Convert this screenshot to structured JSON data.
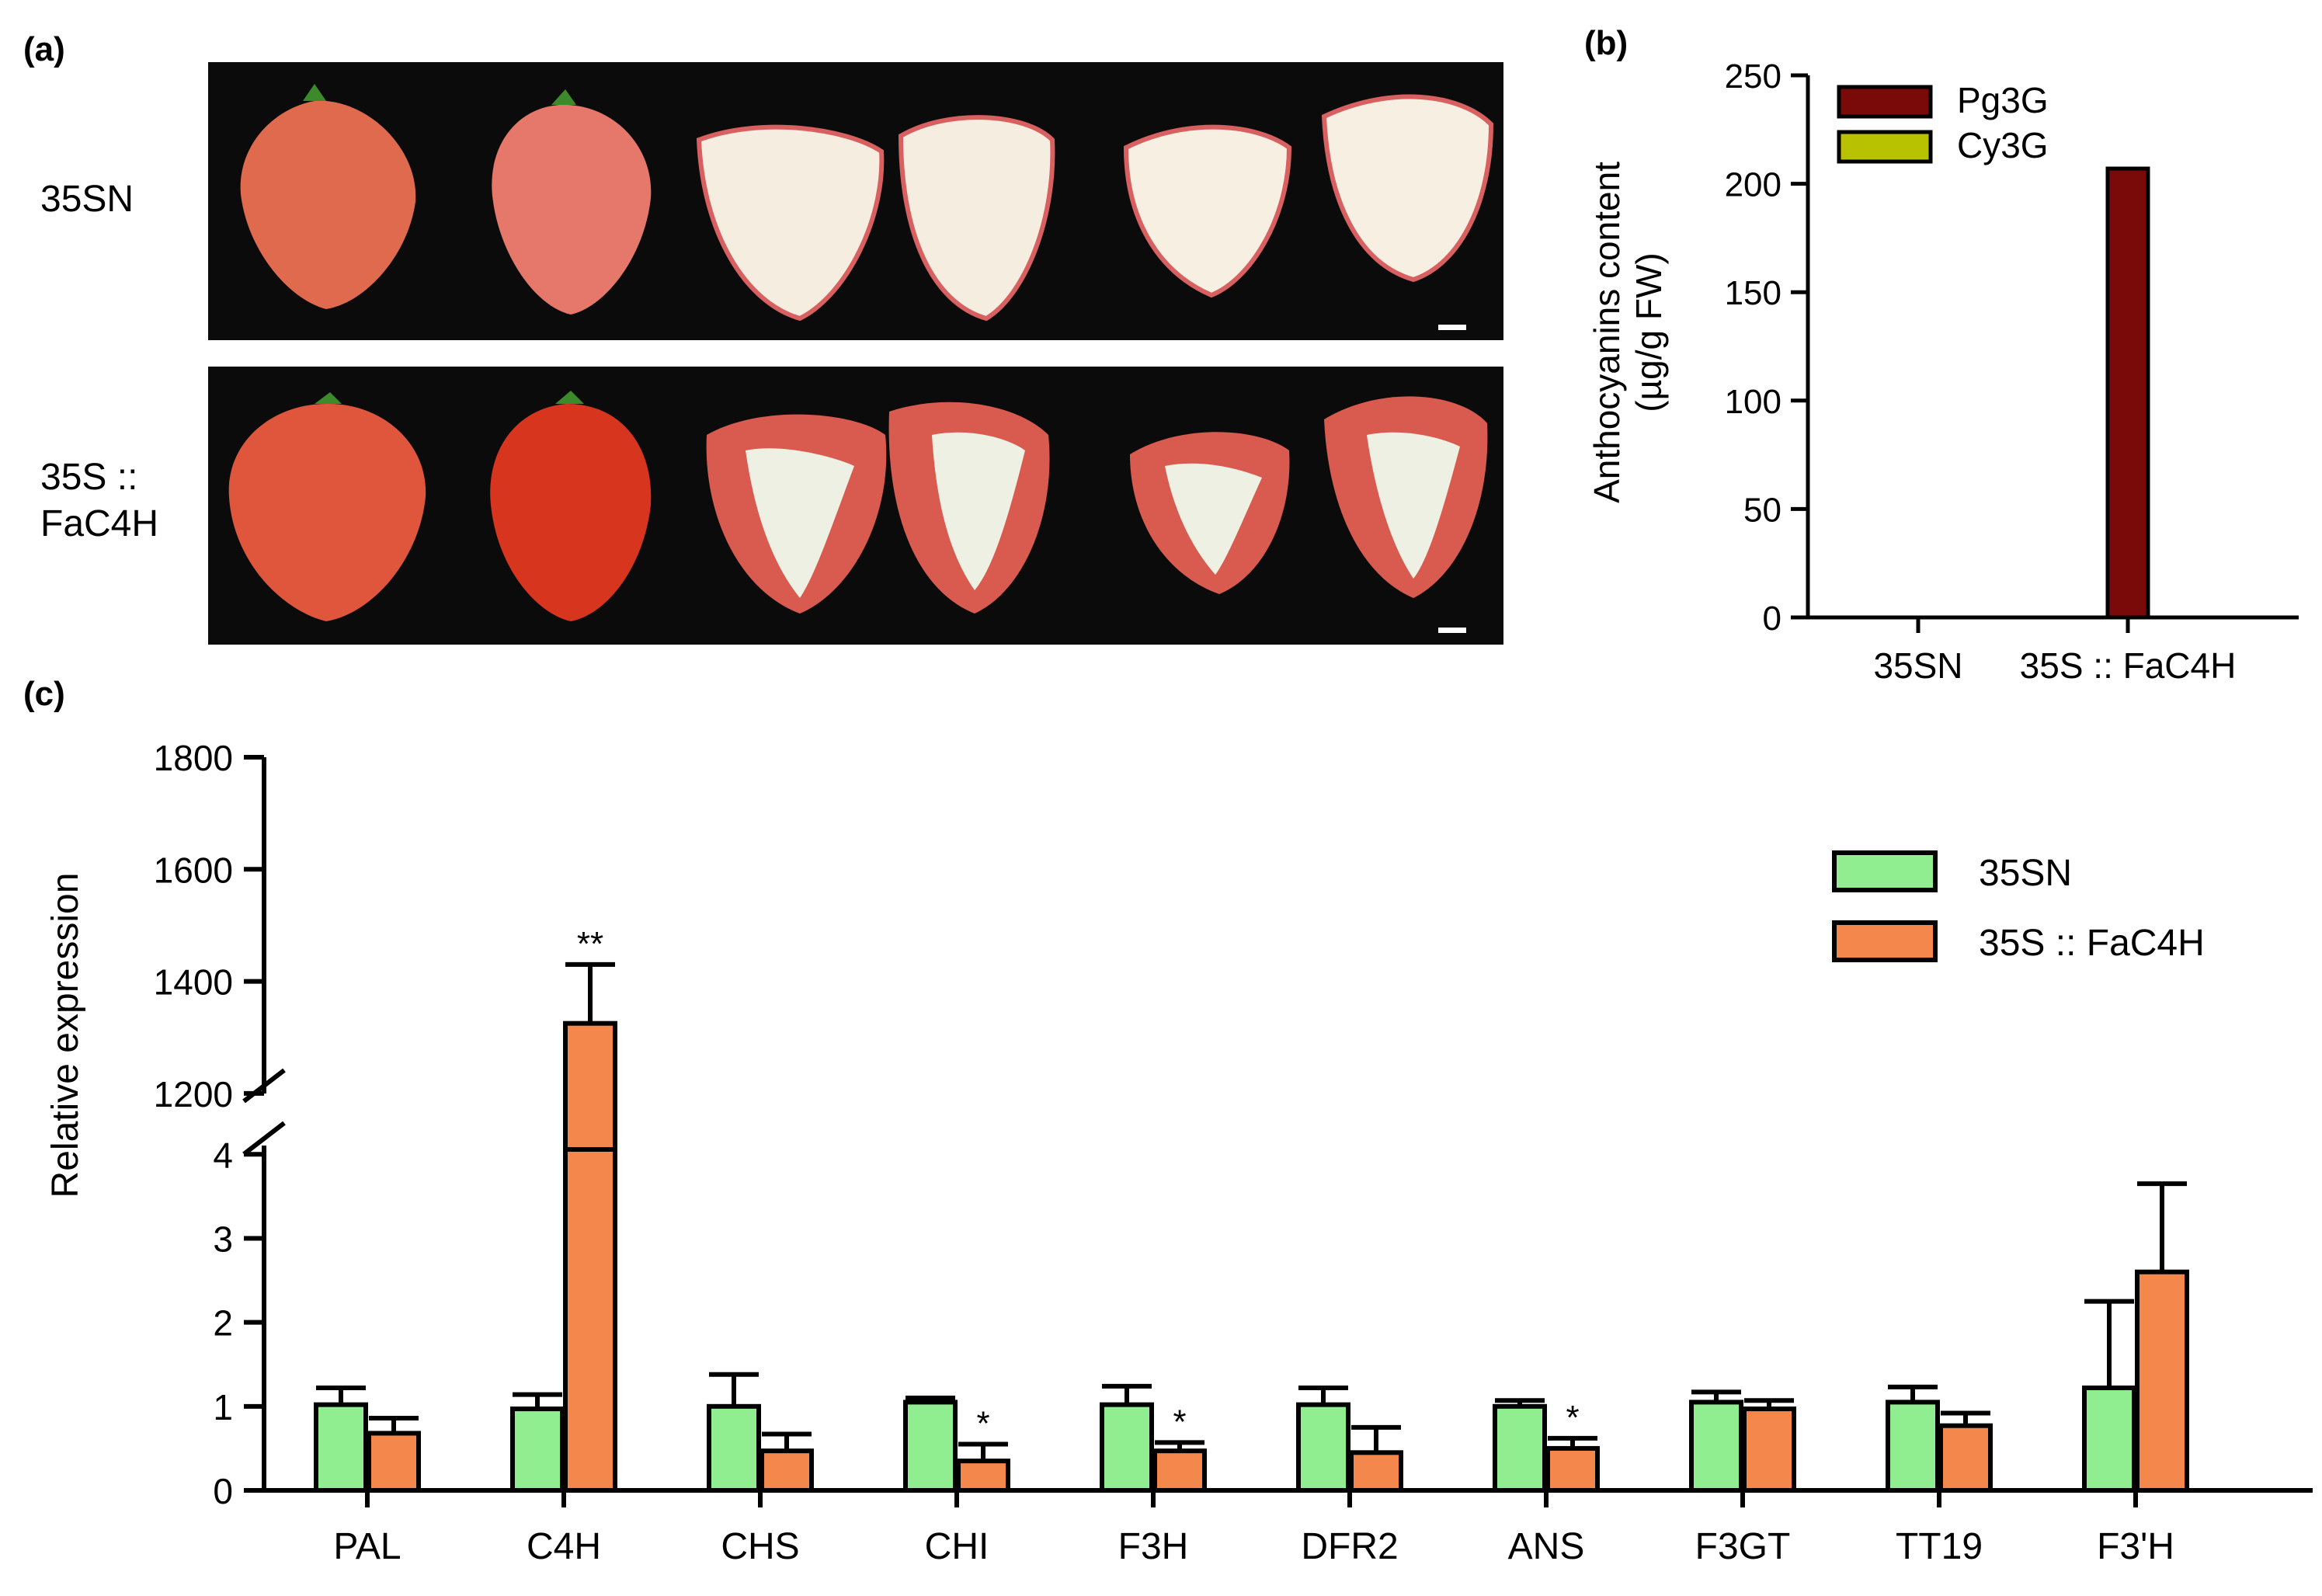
{
  "panel_labels": {
    "a": "(a)",
    "b": "(b)",
    "c": "(c)"
  },
  "photo_panel": {
    "row_labels": {
      "row1": "35SN",
      "row2_line1": "35S ::",
      "row2_line2": "FaC4H"
    },
    "description": ""
  },
  "colors": {
    "pg3g": "#7a0a0a",
    "cy3g": "#b9c200",
    "ctrl": "#90ee90",
    "oe": "#f4874b",
    "photo_bg": "#0b0b0b"
  },
  "chart_data": [
    {
      "id": "b",
      "type": "bar",
      "title": "",
      "ylabel_line1": "Anthocyanins content",
      "ylabel_line2": "(µg/g FW)",
      "xlabel": "",
      "categories": [
        "35SN",
        "35S :: FaC4H"
      ],
      "ylim": [
        0,
        250
      ],
      "yticks": [
        0,
        50,
        100,
        150,
        200,
        250
      ],
      "series": [
        {
          "name": "Pg3G",
          "values": [
            0,
            207
          ]
        },
        {
          "name": "Cy3G",
          "values": [
            0,
            0
          ]
        }
      ],
      "legend_position": "top-left"
    },
    {
      "id": "c",
      "type": "bar",
      "title": "",
      "ylabel": "Relative expression",
      "xlabel": "",
      "broken_axis": true,
      "lower_ylim": [
        0,
        4.4
      ],
      "lower_yticks": [
        0,
        1,
        2,
        3,
        4
      ],
      "upper_ylim": [
        1100,
        1800
      ],
      "upper_yticks": [
        1200,
        1400,
        1600,
        1800
      ],
      "categories": [
        "PAL",
        "C4H",
        "CHS",
        "CHI",
        "F3H",
        "DFR2",
        "ANS",
        "F3GT",
        "TT19",
        "F3'H"
      ],
      "series": [
        {
          "name": "35SN",
          "values": [
            1.02,
            0.97,
            1.0,
            1.05,
            1.02,
            1.02,
            1.0,
            1.05,
            1.05,
            1.22
          ],
          "errors": [
            0.2,
            0.17,
            0.38,
            0.05,
            0.22,
            0.2,
            0.07,
            0.12,
            0.18,
            1.03
          ]
        },
        {
          "name": "35S :: FaC4H",
          "values": [
            0.68,
            1325,
            0.47,
            0.35,
            0.47,
            0.45,
            0.5,
            0.97,
            0.77,
            2.6
          ],
          "errors": [
            0.18,
            105,
            0.2,
            0.2,
            0.1,
            0.3,
            0.12,
            0.1,
            0.15,
            1.05
          ]
        }
      ],
      "annotations": [
        "",
        "**",
        "",
        "*",
        "*",
        "",
        "*",
        "",
        "",
        ""
      ],
      "legend_position": "top-right"
    }
  ]
}
